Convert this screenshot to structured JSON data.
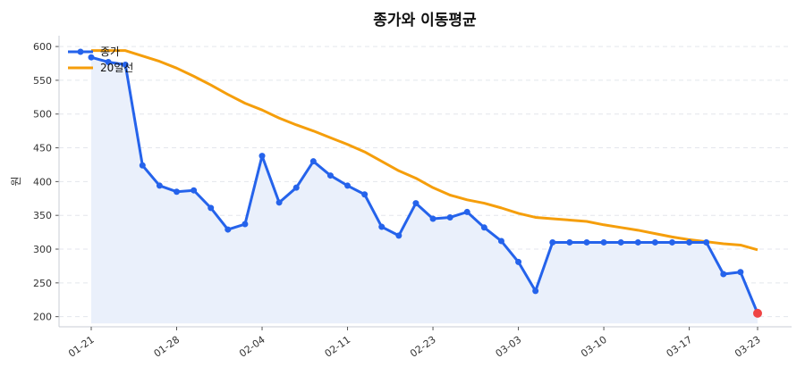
{
  "chart_data": {
    "type": "line",
    "title": "종가와 이동평균",
    "xlabel": "",
    "ylabel": "원",
    "ylim": [
      185,
      616
    ],
    "yticks": [
      200,
      250,
      300,
      350,
      400,
      450,
      500,
      550,
      600
    ],
    "xtick_labels": [
      "01-21",
      "01-28",
      "02-04",
      "02-11",
      "02-23",
      "03-03",
      "03-10",
      "03-17",
      "03-23"
    ],
    "grid": true,
    "legend_position": "top-left",
    "series": [
      {
        "name": "종가",
        "color": "#2563eb",
        "fill": "#eaf0fb",
        "markers": true,
        "last_point_color": "#ef4444",
        "values": [
          584,
          577,
          573,
          424,
          394,
          385,
          387,
          361,
          329,
          337,
          438,
          369,
          391,
          430,
          409,
          394,
          381,
          333,
          320,
          368,
          345,
          347,
          355,
          332,
          312,
          281,
          238,
          310,
          310,
          310,
          310,
          310,
          310,
          310,
          310,
          310,
          310,
          263,
          266,
          205
        ]
      },
      {
        "name": "20일선",
        "color": "#f59e0b",
        "markers": false,
        "values": [
          594,
          594,
          594,
          586,
          578,
          568,
          556,
          543,
          529,
          516,
          506,
          494,
          484,
          475,
          465,
          455,
          444,
          430,
          416,
          405,
          391,
          380,
          373,
          368,
          361,
          353,
          347,
          345,
          343,
          341,
          336,
          332,
          328,
          323,
          318,
          314,
          311,
          308,
          306,
          299
        ]
      }
    ]
  }
}
